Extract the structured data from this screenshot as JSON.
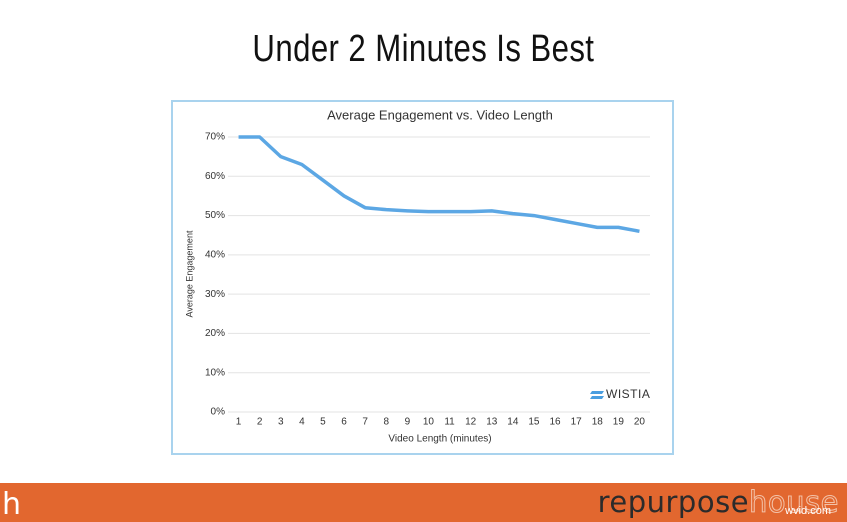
{
  "slide_title": "Under 2 Minutes Is Best",
  "chart_data": {
    "type": "line",
    "title": "Average Engagement vs. Video Length",
    "x_label": "Video Length (minutes)",
    "y_label": "Average Engagement",
    "x": [
      1,
      2,
      3,
      4,
      5,
      6,
      7,
      8,
      9,
      10,
      11,
      12,
      13,
      14,
      15,
      16,
      17,
      18,
      19,
      20
    ],
    "values": [
      70,
      70,
      65,
      63,
      59,
      55,
      52,
      51.5,
      51.2,
      51,
      51,
      51,
      51.2,
      50.5,
      50,
      49,
      48,
      47,
      47,
      46
    ],
    "color": "#5ca7e4",
    "xlim": [
      0.5,
      20.5
    ],
    "xticks": [
      1,
      2,
      3,
      4,
      5,
      6,
      7,
      8,
      9,
      10,
      11,
      12,
      13,
      14,
      15,
      16,
      17,
      18,
      19,
      20
    ],
    "ylim": [
      0,
      70
    ],
    "yticks": [
      {
        "value": 0,
        "label": "0%"
      },
      {
        "value": 10,
        "label": "10%"
      },
      {
        "value": 20,
        "label": "20%"
      },
      {
        "value": 30,
        "label": "30%"
      },
      {
        "value": 40,
        "label": "40%"
      },
      {
        "value": 50,
        "label": "50%"
      },
      {
        "value": 60,
        "label": "60%"
      },
      {
        "value": 70,
        "label": "70%"
      }
    ],
    "grid": true,
    "logo": "WISTIA"
  },
  "footer": {
    "logo": "h",
    "brand_main": "repurpose",
    "brand_accent": "house",
    "watermark": "wvid.com"
  }
}
